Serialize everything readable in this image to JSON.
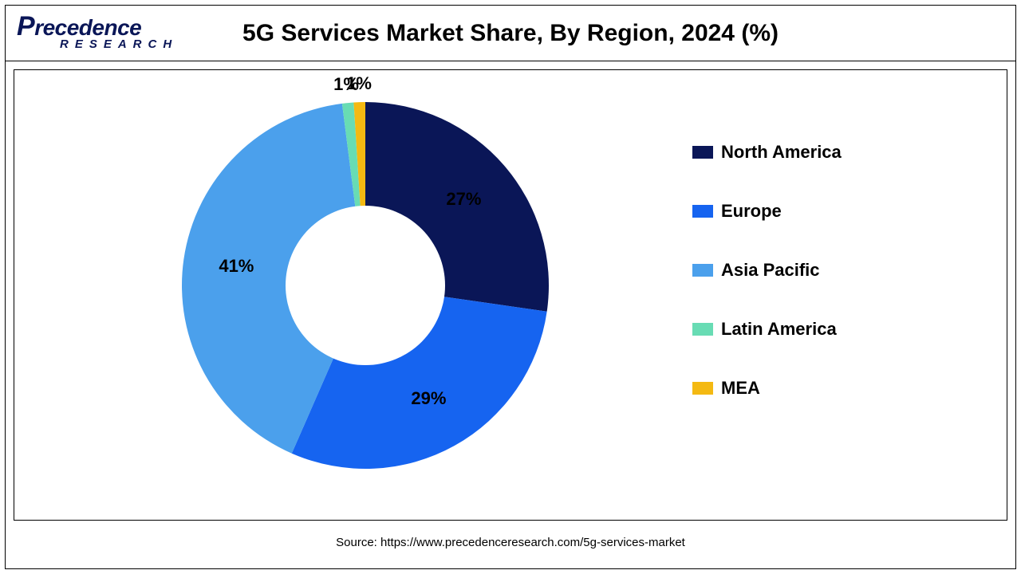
{
  "logo": {
    "top": "Precedence",
    "bottom": "RESEARCH"
  },
  "chart": {
    "type": "donut",
    "title": "5G Services Market Share, By Region, 2024 (%)",
    "inner_radius_ratio": 0.42,
    "background_color": "#ffffff",
    "start_angle_deg": 0,
    "segments": [
      {
        "label": "North America",
        "value": 27,
        "color": "#0a1657",
        "pct_label": "27%",
        "label_color_on_slice": "#000000"
      },
      {
        "label": "Europe",
        "value": 29,
        "color": "#1664f0",
        "pct_label": "29%",
        "label_color_on_slice": "#000000"
      },
      {
        "label": "Asia Pacific",
        "value": 41,
        "color": "#4ba0ec",
        "pct_label": "41%",
        "label_color_on_slice": "#000000"
      },
      {
        "label": "Latin America",
        "value": 1,
        "color": "#68dcb4",
        "pct_label": "1%",
        "label_color_on_slice": "#000000"
      },
      {
        "label": "MEA",
        "value": 1,
        "color": "#f4b912",
        "pct_label": "1%",
        "label_color_on_slice": "#000000"
      }
    ],
    "label_fontsize": 22,
    "label_fontweight": 700,
    "legend_fontsize": 22,
    "legend_fontweight": 700,
    "title_fontsize": 30
  },
  "source": "Source: https://www.precedenceresearch.com/5g-services-market"
}
